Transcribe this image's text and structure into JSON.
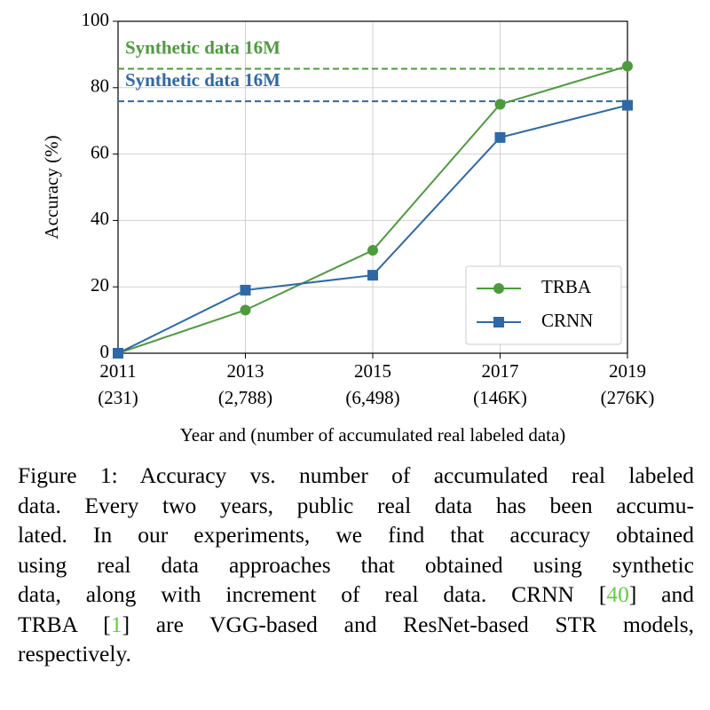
{
  "chart_data": {
    "type": "line",
    "xlabel": "Year and (number of accumulated real labeled data)",
    "ylabel": "Accuracy (%)",
    "categories": [
      "2011",
      "2013",
      "2015",
      "2017",
      "2019"
    ],
    "category_sublabels": [
      "(231)",
      "(2,788)",
      "(6,498)",
      "(146K)",
      "(276K)"
    ],
    "series": [
      {
        "name": "TRBA",
        "color": "#4e9a3e",
        "marker": "circle",
        "values": [
          0,
          13,
          31,
          75,
          86.5
        ]
      },
      {
        "name": "CRNN",
        "color": "#2e69a5",
        "marker": "square",
        "values": [
          0,
          19,
          23.5,
          65,
          74.7
        ]
      }
    ],
    "reference_lines": [
      {
        "label": "Synthetic data 16M",
        "value": 85.7,
        "color": "#4e9a3e"
      },
      {
        "label": "Synthetic data 16M",
        "value": 75.9,
        "color": "#2e69a5"
      }
    ],
    "ylim": [
      0,
      100
    ],
    "yticks": [
      0,
      20,
      40,
      60,
      80,
      100
    ],
    "grid": true,
    "legend": "lower right"
  },
  "caption": {
    "lines": [
      [
        {
          "text": "Figure 1: Accuracy vs. number of accumulated real labeled"
        }
      ],
      [
        {
          "text": "data. Every two years, public real data has been accumu-"
        }
      ],
      [
        {
          "text": "lated. In our experiments, we find that accuracy obtained"
        }
      ],
      [
        {
          "text": "using real data approaches that obtained using synthetic"
        }
      ],
      [
        {
          "text": "data, along with increment of real data. CRNN ["
        },
        {
          "text": "40",
          "ref": true
        },
        {
          "text": "] and"
        }
      ],
      [
        {
          "text": "TRBA ["
        },
        {
          "text": "1",
          "ref": true
        },
        {
          "text": "] are VGG-based and ResNet-based STR models,"
        }
      ],
      [
        {
          "text": "respectively."
        }
      ]
    ]
  }
}
